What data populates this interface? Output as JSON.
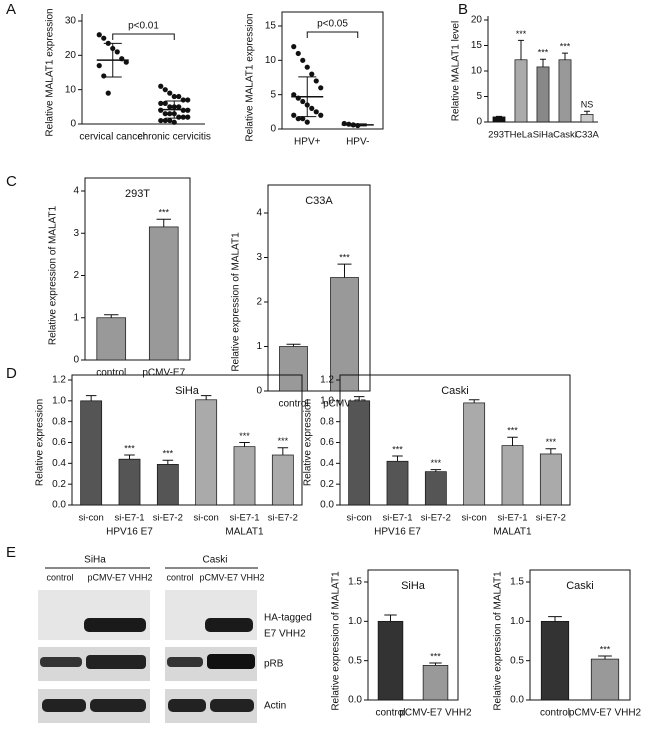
{
  "panel_labels": [
    "A",
    "B",
    "C",
    "D",
    "E"
  ],
  "blot": {
    "cell_lines": [
      "SiHa",
      "Caski"
    ],
    "lanes": [
      "control",
      "pCMV-E7 VHH2"
    ],
    "rows": [
      "HA-tagged",
      "E7 VHH2",
      "pRB",
      "Actin"
    ]
  },
  "chart_data": [
    {
      "type": "strip",
      "y_label": "Relative MALAT1 expression",
      "categories": [
        "cervical cancer",
        "chronic cervicitis"
      ],
      "points": [
        [
          26,
          25,
          23.5,
          22,
          21,
          19,
          18,
          17,
          14,
          9
        ],
        [
          11,
          10,
          9,
          8,
          8,
          7,
          7,
          6,
          6,
          5,
          5,
          5,
          4,
          4,
          4,
          3,
          3,
          3,
          2,
          2,
          2,
          1,
          1,
          1,
          0.5
        ]
      ],
      "means": [
        18.6,
        4.2
      ],
      "sd": [
        4.9,
        2.5
      ],
      "annotation": "p<0.01",
      "ylim": [
        0,
        30
      ],
      "yticks": [
        0,
        10,
        20,
        30
      ],
      "frame": false
    },
    {
      "type": "strip",
      "y_label": "Relative MALAT1 expression",
      "categories": [
        "HPV+",
        "HPV-"
      ],
      "points": [
        [
          12,
          11,
          10,
          9,
          8,
          7,
          6,
          5,
          4.5,
          4,
          3.5,
          3,
          2.5,
          2,
          2,
          1.5,
          1.5,
          1
        ],
        [
          0.8,
          0.7,
          0.6,
          0.5
        ]
      ],
      "means": [
        4.7,
        0.6
      ],
      "sd": [
        2.9,
        0.15
      ],
      "annotation": "p<0.05",
      "ylim": [
        0,
        15
      ],
      "yticks": [
        0,
        5,
        10,
        15
      ],
      "frame": true
    },
    {
      "type": "bar",
      "y_label": "Relative MALAT1 level",
      "categories": [
        "293T",
        "HeLa",
        "SiHa",
        "Caski",
        "C33A"
      ],
      "values": [
        1,
        12.2,
        10.8,
        12.2,
        1.5
      ],
      "errors": [
        0.1,
        3.8,
        1.5,
        1.3,
        0.6
      ],
      "significance": [
        null,
        "***",
        "***",
        "***",
        "NS"
      ],
      "colors": [
        "#111111",
        "#aaaaaa",
        "#888888",
        "#999999",
        "#cccccc"
      ],
      "ylim": [
        0,
        20
      ],
      "yticks": [
        0,
        5,
        10,
        15,
        20
      ],
      "frame": false
    },
    {
      "type": "bar",
      "title": "293T",
      "y_label": "Relative expression of MALAT1",
      "categories": [
        "control",
        "pCMV-E7"
      ],
      "values": [
        1.0,
        3.15
      ],
      "errors": [
        0.07,
        0.18
      ],
      "significance": [
        null,
        "***"
      ],
      "colors": [
        "#999999",
        "#999999"
      ],
      "ylim": [
        0,
        4
      ],
      "yticks": [
        0,
        1,
        2,
        3,
        4
      ],
      "frame": true
    },
    {
      "type": "bar",
      "title": "C33A",
      "y_label": "Relative expression of MALAT1",
      "categories": [
        "control",
        "pCMV-E7"
      ],
      "values": [
        1.0,
        2.55
      ],
      "errors": [
        0.05,
        0.3
      ],
      "significance": [
        null,
        "***"
      ],
      "colors": [
        "#999999",
        "#999999"
      ],
      "ylim": [
        0,
        4
      ],
      "yticks": [
        0,
        1,
        2,
        3,
        4
      ],
      "frame": true
    },
    {
      "type": "bar",
      "title": "SiHa",
      "y_label": "Relative expression",
      "categories": [
        "si-con",
        "si-E7-1",
        "si-E7-2",
        "si-con",
        "si-E7-1",
        "si-E7-2"
      ],
      "group_labels": [
        "HPV16 E7",
        "MALAT1"
      ],
      "values": [
        1.0,
        0.44,
        0.39,
        1.01,
        0.56,
        0.48
      ],
      "errors": [
        0.05,
        0.04,
        0.04,
        0.04,
        0.04,
        0.07
      ],
      "significance": [
        null,
        "***",
        "***",
        null,
        "***",
        "***"
      ],
      "colors": [
        "#555555",
        "#555555",
        "#555555",
        "#aaaaaa",
        "#aaaaaa",
        "#aaaaaa"
      ],
      "ylim": [
        0,
        1.2
      ],
      "yticks": [
        {
          "value": 0,
          "label": "0.0"
        },
        0.2,
        0.4,
        0.6,
        0.8,
        {
          "value": 1,
          "label": "1.0"
        },
        1.2
      ],
      "frame": true
    },
    {
      "type": "bar",
      "title": "Caski",
      "y_label": "Relative expression",
      "categories": [
        "si-con",
        "si-E7-1",
        "si-E7-2",
        "si-con",
        "si-E7-1",
        "si-E7-2"
      ],
      "group_labels": [
        "HPV16 E7",
        "MALAT1"
      ],
      "values": [
        1.0,
        0.42,
        0.32,
        0.98,
        0.57,
        0.49
      ],
      "errors": [
        0.04,
        0.05,
        0.02,
        0.03,
        0.08,
        0.05
      ],
      "significance": [
        null,
        "***",
        "***",
        null,
        "***",
        "***"
      ],
      "colors": [
        "#555555",
        "#555555",
        "#555555",
        "#aaaaaa",
        "#aaaaaa",
        "#aaaaaa"
      ],
      "ylim": [
        0,
        1.2
      ],
      "yticks": [
        {
          "value": 0,
          "label": "0.0"
        },
        0.2,
        0.4,
        0.6,
        0.8,
        {
          "value": 1,
          "label": "1.0"
        },
        1.2
      ],
      "frame": true
    },
    {
      "type": "bar",
      "title": "SiHa",
      "y_label": "Relative expression of MALAT1",
      "categories": [
        "control",
        "pCMV-E7 VHH2"
      ],
      "values": [
        1.0,
        0.44
      ],
      "errors": [
        0.08,
        0.03
      ],
      "significance": [
        null,
        "***"
      ],
      "colors": [
        "#333333",
        "#999999"
      ],
      "ylim": [
        0,
        1.5
      ],
      "yticks": [
        {
          "value": 0,
          "label": "0.0"
        },
        0.5,
        {
          "value": 1,
          "label": "1.0"
        },
        1.5
      ],
      "frame": true
    },
    {
      "type": "bar",
      "title": "Caski",
      "y_label": "Relative expression of MALAT1",
      "categories": [
        "control",
        "pCMV-E7 VHH2"
      ],
      "values": [
        1.0,
        0.52
      ],
      "errors": [
        0.06,
        0.04
      ],
      "significance": [
        null,
        "***"
      ],
      "colors": [
        "#333333",
        "#999999"
      ],
      "ylim": [
        0,
        1.5
      ],
      "yticks": [
        {
          "value": 0,
          "label": "0.0"
        },
        0.5,
        {
          "value": 1,
          "label": "1.0"
        },
        1.5
      ],
      "frame": true
    }
  ]
}
